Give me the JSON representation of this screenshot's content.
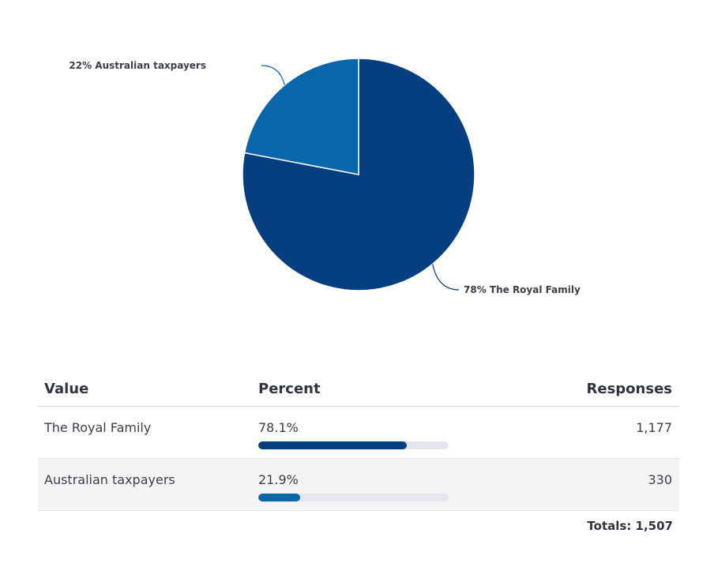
{
  "chart_data": {
    "type": "pie",
    "title": "",
    "slices": [
      {
        "label": "The Royal Family",
        "value": 78,
        "display": "78% The Royal Family",
        "color": "#063f7f"
      },
      {
        "label": "Australian taxpayers",
        "value": 22,
        "display": "22% Australian taxpayers",
        "color": "#0767aa"
      }
    ]
  },
  "table": {
    "headers": {
      "value": "Value",
      "percent": "Percent",
      "responses": "Responses"
    },
    "rows": [
      {
        "value": "The Royal Family",
        "percent_text": "78.1%",
        "percent": 78.1,
        "responses": "1,177",
        "bar_color": "#063f7f"
      },
      {
        "value": "Australian taxpayers",
        "percent_text": "21.9%",
        "percent": 21.9,
        "responses": "330",
        "bar_color": "#0767aa"
      }
    ],
    "totals": "Totals: 1,507"
  }
}
